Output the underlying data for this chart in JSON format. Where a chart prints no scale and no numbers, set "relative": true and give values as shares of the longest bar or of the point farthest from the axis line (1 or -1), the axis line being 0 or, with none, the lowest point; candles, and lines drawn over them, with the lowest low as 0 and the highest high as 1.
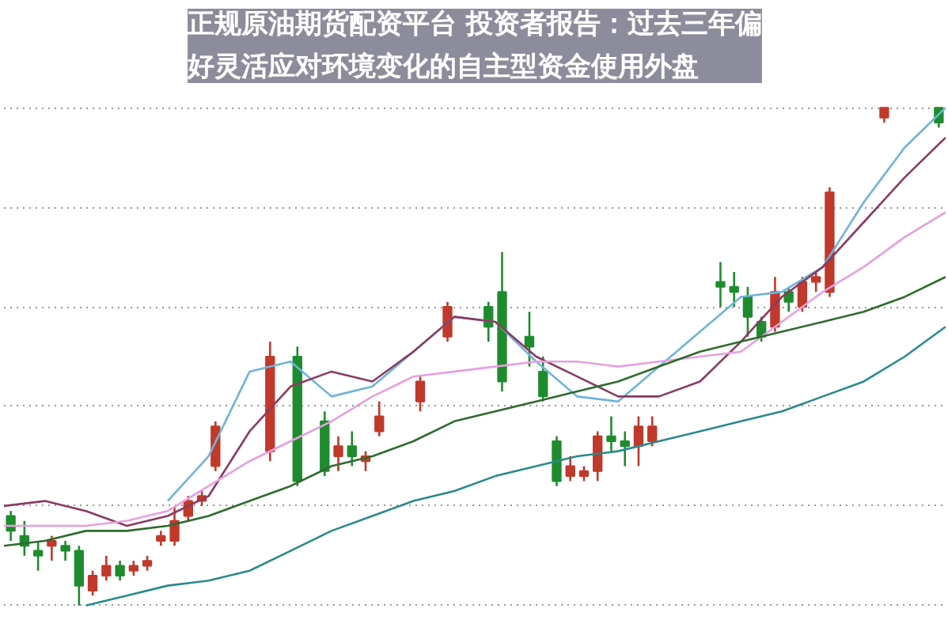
{
  "chart_data": [
    {
      "type": "candlestick",
      "title": "正规原油期货配资平台 投资者报告：过去三年偏好灵活应对环境变化的自主型资金使用外盘",
      "relative": true,
      "grid": "y",
      "categories": [
        null,
        null,
        null,
        null,
        null,
        null,
        null,
        null,
        null,
        null,
        null,
        null,
        null,
        null,
        null,
        null,
        null,
        null,
        null,
        null,
        null,
        null,
        null,
        null,
        null,
        null,
        null,
        null,
        null,
        null,
        null,
        null,
        null,
        null,
        null,
        null,
        null,
        null,
        null,
        null,
        null,
        null,
        null,
        null,
        null,
        null,
        null,
        null,
        null,
        null,
        null,
        null,
        null,
        null,
        null,
        null,
        null,
        null,
        null,
        null,
        null,
        null,
        null,
        null,
        null,
        null,
        null,
        null,
        null
      ],
      "ohlc": [
        [
          0.18,
          0.19,
          0.13,
          0.15
        ],
        [
          0.14,
          0.17,
          0.1,
          0.12
        ],
        [
          0.11,
          0.13,
          0.07,
          0.1
        ],
        [
          0.12,
          0.14,
          0.09,
          0.13
        ],
        [
          0.12,
          0.13,
          0.09,
          0.11
        ],
        [
          0.11,
          0.12,
          0,
          0.04
        ],
        [
          0.03,
          0.07,
          0.02,
          0.06
        ],
        [
          0.06,
          0.1,
          0.05,
          0.08
        ],
        [
          0.08,
          0.09,
          0.05,
          0.06
        ],
        [
          0.07,
          0.09,
          0.06,
          0.08
        ],
        [
          0.08,
          0.1,
          0.07,
          0.09
        ],
        [
          0.13,
          0.15,
          0.12,
          0.14
        ],
        [
          0.13,
          0.2,
          0.12,
          0.17
        ],
        [
          0.18,
          0.22,
          0.17,
          0.21
        ],
        [
          0.21,
          0.23,
          0.2,
          0.22
        ],
        [
          0.28,
          0.37,
          0.27,
          0.36
        ],
        null,
        null,
        null,
        [
          0.31,
          0.53,
          0.29,
          0.5
        ],
        null,
        [
          0.5,
          0.52,
          0.24,
          0.25
        ],
        null,
        [
          0.37,
          0.39,
          0.26,
          0.27
        ],
        [
          0.3,
          0.34,
          0.27,
          0.32
        ],
        [
          0.32,
          0.35,
          0.28,
          0.3
        ],
        [
          0.29,
          0.31,
          0.27,
          0.3
        ],
        [
          0.35,
          0.41,
          0.34,
          0.38
        ],
        null,
        null,
        [
          0.41,
          0.46,
          0.39,
          0.45
        ],
        null,
        [
          0.54,
          0.61,
          0.53,
          0.6
        ],
        null,
        null,
        [
          0.6,
          0.61,
          0.53,
          0.56
        ],
        [
          0.63,
          0.71,
          0.43,
          0.45
        ],
        null,
        [
          0.54,
          0.59,
          0.48,
          0.52
        ],
        [
          0.47,
          0.5,
          0.41,
          0.42
        ],
        [
          0.33,
          0.34,
          0.24,
          0.25
        ],
        [
          0.26,
          0.3,
          0.25,
          0.28
        ],
        [
          0.26,
          0.28,
          0.25,
          0.27
        ],
        [
          0.27,
          0.35,
          0.25,
          0.34
        ],
        [
          0.34,
          0.38,
          0.31,
          0.33
        ],
        [
          0.33,
          0.35,
          0.28,
          0.32
        ],
        [
          0.32,
          0.38,
          0.28,
          0.36
        ],
        [
          0.33,
          0.38,
          0.32,
          0.36
        ],
        null,
        null,
        null,
        null,
        [
          0.65,
          0.69,
          0.6,
          0.64
        ],
        [
          0.64,
          0.67,
          0.6,
          0.63
        ],
        [
          0.62,
          0.64,
          0.54,
          0.58
        ],
        [
          0.57,
          0.58,
          0.53,
          0.54
        ],
        [
          0.56,
          0.66,
          0.55,
          0.63
        ],
        [
          0.63,
          0.64,
          0.59,
          0.61
        ],
        [
          0.6,
          0.66,
          0.59,
          0.65
        ],
        [
          0.65,
          0.67,
          0.63,
          0.66
        ],
        [
          0.63,
          0.84,
          0.62,
          0.83
        ],
        null,
        null,
        null,
        [
          0.98,
          1.0,
          0.97,
          1.0
        ],
        null,
        null,
        null,
        [
          1.0,
          1.0,
          0.96,
          0.97
        ]
      ],
      "colors": [
        "#1e8c2e",
        "#1e8c2e",
        "#1e8c2e",
        "#c0392b",
        "#1e8c2e",
        "#1e8c2e",
        "#c0392b",
        "#c0392b",
        "#1e8c2e",
        "#c0392b",
        "#c0392b",
        "#c0392b",
        "#c0392b",
        "#c0392b",
        "#c0392b",
        "#c0392b",
        null,
        null,
        null,
        "#c0392b",
        null,
        "#1e8c2e",
        null,
        "#1e8c2e",
        "#c0392b",
        "#1e8c2e",
        "#c0392b",
        "#c0392b",
        null,
        null,
        "#c0392b",
        null,
        "#c0392b",
        null,
        null,
        "#1e8c2e",
        "#1e8c2e",
        null,
        "#1e8c2e",
        "#1e8c2e",
        "#1e8c2e",
        "#c0392b",
        "#c0392b",
        "#c0392b",
        "#1e8c2e",
        "#1e8c2e",
        "#c0392b",
        "#c0392b",
        null,
        null,
        null,
        null,
        "#1e8c2e",
        "#1e8c2e",
        "#1e8c2e",
        "#1e8c2e",
        "#c0392b",
        "#1e8c2e",
        "#c0392b",
        "#c0392b",
        "#c0392b",
        null,
        null,
        null,
        "#c0392b",
        null,
        null,
        null,
        "#1e8c2e"
      ]
    },
    {
      "type": "line",
      "relative": true,
      "categories": [
        null,
        null,
        null,
        null,
        null,
        null,
        null,
        null,
        null,
        null,
        null,
        null,
        null,
        null,
        null,
        null,
        null,
        null,
        null,
        null,
        null,
        null,
        null,
        null
      ],
      "series": [
        {
          "color": "#6fb3d9",
          "values": [
            null,
            null,
            null,
            null,
            0.21,
            0.3,
            0.47,
            0.49,
            0.42,
            0.44,
            0.51,
            0.58,
            0.57,
            0.49,
            0.42,
            0.41,
            0.48,
            0.55,
            0.62,
            0.63,
            0.68,
            0.81,
            0.92,
            1.0
          ]
        },
        {
          "color": "#8b3a62",
          "values": [
            0.2,
            0.21,
            0.19,
            0.16,
            0.18,
            0.22,
            0.35,
            0.44,
            0.47,
            0.45,
            0.51,
            0.58,
            0.57,
            0.5,
            0.46,
            0.42,
            0.42,
            0.45,
            0.53,
            0.62,
            0.68,
            0.77,
            0.86,
            0.94
          ]
        },
        {
          "color": "#e6a0e0",
          "values": [
            0.16,
            0.16,
            0.16,
            0.17,
            0.19,
            0.24,
            0.29,
            0.33,
            0.37,
            0.42,
            0.46,
            0.47,
            0.48,
            0.49,
            0.49,
            0.48,
            0.49,
            0.5,
            0.51,
            0.57,
            0.63,
            0.68,
            0.74,
            0.79
          ]
        },
        {
          "color": "#2e6b2e",
          "values": [
            0.12,
            0.13,
            0.15,
            0.15,
            0.16,
            0.18,
            0.21,
            0.24,
            0.28,
            0.3,
            0.33,
            0.37,
            0.39,
            0.41,
            0.43,
            0.45,
            0.48,
            0.51,
            0.53,
            0.55,
            0.57,
            0.59,
            0.62,
            0.66
          ]
        },
        {
          "color": "#2a8a8a",
          "values": [
            null,
            null,
            0,
            0.02,
            0.04,
            0.05,
            0.07,
            0.11,
            0.15,
            0.18,
            0.21,
            0.23,
            0.26,
            0.28,
            0.3,
            0.31,
            0.33,
            0.35,
            0.37,
            0.39,
            0.42,
            0.45,
            0.5,
            0.56
          ]
        }
      ]
    }
  ]
}
